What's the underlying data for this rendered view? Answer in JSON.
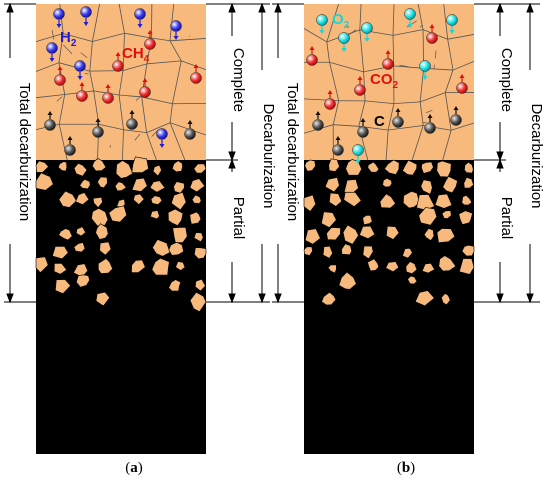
{
  "panels": [
    {
      "id": "a",
      "caption_open": "(",
      "caption_letter": "a",
      "caption_close": ")",
      "gas_in": "H",
      "gas_in_sub": "2",
      "gas_out": "CH",
      "gas_out_sub": "4",
      "carbon": "",
      "gas_in_color": "#1f1fd0",
      "gas_out_color": "#e01010"
    },
    {
      "id": "b",
      "caption_open": "(",
      "caption_letter": "b",
      "caption_close": ")",
      "gas_in": "O",
      "gas_in_sub": "2",
      "gas_out": "CO",
      "gas_out_sub": "2",
      "carbon": "C",
      "gas_in_color": "#19d6d6",
      "gas_out_color": "#e01010"
    }
  ],
  "labels": {
    "total": "Total decarburization",
    "complete": "Complete",
    "partial": "Partial",
    "decarburization": "Decarburization"
  },
  "colors": {
    "ferrite": "#f7b97c",
    "steel": "#000000",
    "grain_boundary": "#555555",
    "carbon_atom": "#333333"
  }
}
